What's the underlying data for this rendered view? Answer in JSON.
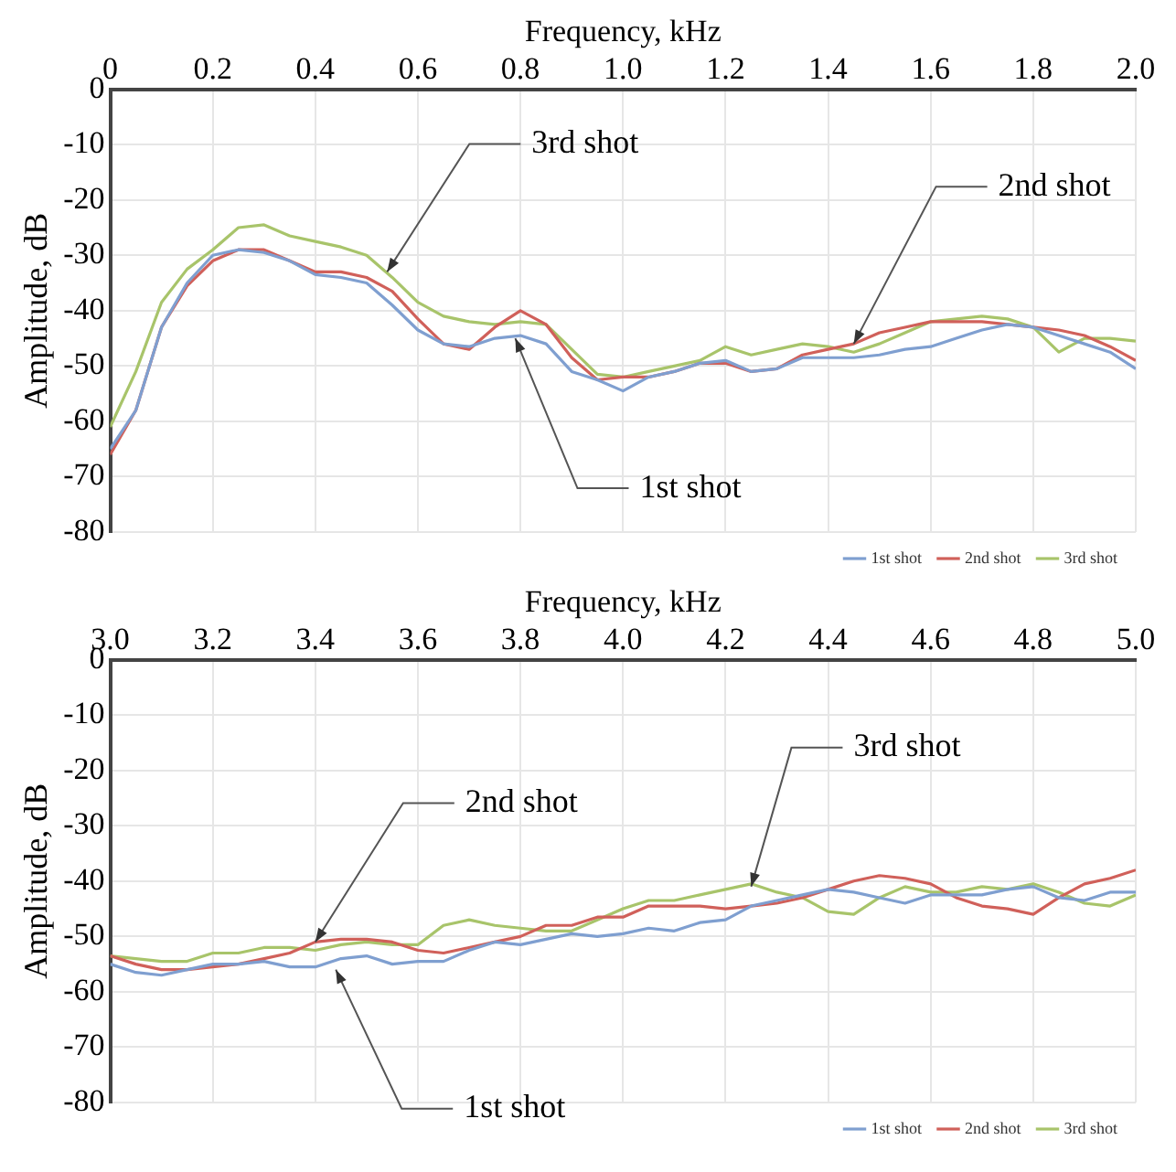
{
  "chart_data": [
    {
      "type": "line",
      "xlabel": "Frequency, kHz",
      "ylabel": "Amplitude, dB",
      "xlim": [
        0,
        2
      ],
      "xticks": [
        0,
        0.2,
        0.4,
        0.6,
        0.8,
        {
          "value": 1,
          "label": "1.0"
        },
        1.2,
        1.4,
        1.6,
        1.8,
        {
          "value": 2,
          "label": "2.0"
        }
      ],
      "ylim": [
        -80,
        0
      ],
      "yticks": [
        -80,
        -70,
        -60,
        -50,
        -40,
        -30,
        -20,
        -10,
        0
      ],
      "grid": true,
      "legend": "bottom right",
      "marker": "none",
      "line_style": "solid",
      "x": [
        0,
        0.05,
        0.1,
        0.15,
        0.2,
        0.25,
        0.3,
        0.35,
        0.4,
        0.45,
        0.5,
        0.55,
        0.6,
        0.65,
        0.7,
        0.75,
        0.8,
        0.85,
        0.9,
        0.95,
        1.0,
        1.05,
        1.1,
        1.15,
        1.2,
        1.25,
        1.3,
        1.35,
        1.4,
        1.45,
        1.5,
        1.55,
        1.6,
        1.65,
        1.7,
        1.75,
        1.8,
        1.85,
        1.9,
        1.95,
        2.0
      ],
      "series": [
        {
          "name": "1st shot",
          "color": "#7f9fd0",
          "values": [
            -65,
            -58,
            -43,
            -35,
            -30,
            -29,
            -29.5,
            -31,
            -33.5,
            -34,
            -35,
            -39,
            -43.5,
            -46,
            -46.5,
            -45,
            -44.5,
            -46,
            -51,
            -52.5,
            -54.5,
            -52,
            -51,
            -49.5,
            -49,
            -51,
            -50.5,
            -48.5,
            -48.5,
            -48.5,
            -48,
            -47,
            -46.5,
            -45,
            -43.5,
            -42.5,
            -43,
            -44.5,
            -46,
            -47.5,
            -50.5
          ]
        },
        {
          "name": "2nd shot",
          "color": "#d0605a",
          "values": [
            -66,
            -58,
            -43,
            -35.5,
            -31,
            -29,
            -29,
            -31,
            -33,
            -33,
            -34,
            -36.5,
            -41.5,
            -46,
            -47,
            -43,
            -40,
            -42.5,
            -48.5,
            -52.5,
            -52,
            -52,
            -51,
            -49.5,
            -49.5,
            -51,
            -50.5,
            -48,
            -47,
            -46,
            -44,
            -43,
            -42,
            -42,
            -42,
            -42.5,
            -43,
            -43.5,
            -44.5,
            -46.5,
            -49
          ]
        },
        {
          "name": "3rd shot",
          "color": "#a8c46a",
          "values": [
            -61,
            -51,
            -38.5,
            -32.5,
            -29,
            -25,
            -24.5,
            -26.5,
            -27.5,
            -28.5,
            -30,
            -34,
            -38.5,
            -41,
            -42,
            -42.5,
            -42,
            -42.5,
            -47,
            -51.5,
            -52,
            -51,
            -50,
            -49,
            -46.5,
            -48,
            -47,
            -46,
            -46.5,
            -47.5,
            -46,
            -44,
            -42,
            -41.5,
            -41,
            -41.5,
            -43,
            -47.5,
            -45,
            -45,
            -45.5
          ]
        }
      ],
      "annotations": [
        {
          "text": "3rd shot",
          "x": 0.54,
          "y": -33
        },
        {
          "text": "2nd shot",
          "x": 1.45,
          "y": -46
        },
        {
          "text": "1st shot",
          "x": 0.79,
          "y": -45
        }
      ]
    },
    {
      "type": "line",
      "xlabel": "Frequency, kHz",
      "ylabel": "Amplitude, dB",
      "xlim": [
        3,
        5
      ],
      "xticks": [
        {
          "value": 3,
          "label": "3.0"
        },
        3.2,
        3.4,
        3.6,
        3.8,
        {
          "value": 4,
          "label": "4.0"
        },
        4.2,
        4.4,
        4.6,
        4.8,
        {
          "value": 5,
          "label": "5.0"
        }
      ],
      "ylim": [
        -80,
        0
      ],
      "yticks": [
        -80,
        -70,
        -60,
        -50,
        -40,
        -30,
        -20,
        -10,
        0
      ],
      "grid": true,
      "legend": "bottom right",
      "marker": "none",
      "line_style": "solid",
      "x": [
        3.0,
        3.05,
        3.1,
        3.15,
        3.2,
        3.25,
        3.3,
        3.35,
        3.4,
        3.45,
        3.5,
        3.55,
        3.6,
        3.65,
        3.7,
        3.75,
        3.8,
        3.85,
        3.9,
        3.95,
        4.0,
        4.05,
        4.1,
        4.15,
        4.2,
        4.25,
        4.3,
        4.35,
        4.4,
        4.45,
        4.5,
        4.55,
        4.6,
        4.65,
        4.7,
        4.75,
        4.8,
        4.85,
        4.9,
        4.95,
        5.0
      ],
      "series": [
        {
          "name": "1st shot",
          "color": "#7f9fd0",
          "values": [
            -55,
            -56.5,
            -57,
            -56,
            -55,
            -55,
            -54.5,
            -55.5,
            -55.5,
            -54,
            -53.5,
            -55,
            -54.5,
            -54.5,
            -52.5,
            -51,
            -51.5,
            -50.5,
            -49.5,
            -50,
            -49.5,
            -48.5,
            -49,
            -47.5,
            -47,
            -44.5,
            -43.5,
            -42.5,
            -41.5,
            -42,
            -43,
            -44,
            -42.5,
            -42.5,
            -42.5,
            -41.5,
            -41,
            -43,
            -43.5,
            -42,
            -42
          ]
        },
        {
          "name": "2nd shot",
          "color": "#d0605a",
          "values": [
            -53.5,
            -55,
            -56,
            -56,
            -55.5,
            -55,
            -54,
            -53,
            -51,
            -50.5,
            -50.5,
            -51,
            -52.5,
            -53,
            -52,
            -51,
            -50,
            -48,
            -48,
            -46.5,
            -46.5,
            -44.5,
            -44.5,
            -44.5,
            -45,
            -44.5,
            -44,
            -43,
            -41.5,
            -40,
            -39,
            -39.5,
            -40.5,
            -43,
            -44.5,
            -45,
            -46,
            -43,
            -40.5,
            -39.5,
            -38
          ]
        },
        {
          "name": "3rd shot",
          "color": "#a8c46a",
          "values": [
            -53.5,
            -54,
            -54.5,
            -54.5,
            -53,
            -53,
            -52,
            -52,
            -52.5,
            -51.5,
            -51,
            -51.5,
            -51.5,
            -48,
            -47,
            -48,
            -48.5,
            -49,
            -49,
            -47,
            -45,
            -43.5,
            -43.5,
            -42.5,
            -41.5,
            -40.5,
            -42,
            -43,
            -45.5,
            -46,
            -43,
            -41,
            -42,
            -42,
            -41,
            -41.5,
            -40.5,
            -42,
            -44,
            -44.5,
            -42.5
          ]
        }
      ],
      "annotations": [
        {
          "text": "2nd shot",
          "x": 3.4,
          "y": -51
        },
        {
          "text": "1st shot",
          "x": 3.44,
          "y": -56
        },
        {
          "text": "3rd shot",
          "x": 4.25,
          "y": -41
        }
      ]
    }
  ]
}
